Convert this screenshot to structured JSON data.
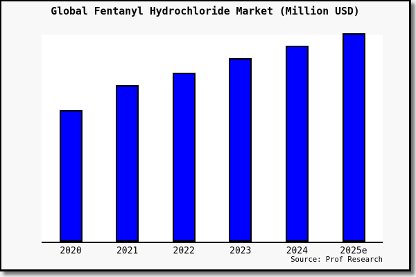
{
  "title": "Global Fentanyl Hydrochloride Market (Million USD)",
  "source_credit": "Source: Prof Research",
  "colors": {
    "bar_fill": "#0000ff",
    "bar_border": "#000000",
    "frame_background": "#f8f8f8",
    "plot_background": "#ffffff",
    "axis": "#000000",
    "frame_border": "#000000",
    "text": "#000000"
  },
  "chart_data": {
    "type": "bar",
    "title": "Global Fentanyl Hydrochloride Market (Million USD)",
    "categories": [
      "2020",
      "2021",
      "2022",
      "2023",
      "2024",
      "2025e"
    ],
    "values": [
      63,
      75,
      81,
      88,
      94,
      100
    ],
    "values_note": "No y-axis ticks or data labels are shown in the image; values are estimated bar heights as percent of the tallest (2025e) bar",
    "xlabel": "",
    "ylabel": "",
    "ylim": [
      0,
      100
    ],
    "grid": false,
    "legend": false,
    "bar_color": "#0000ff",
    "annotations": [
      "Source: Prof Research"
    ]
  }
}
